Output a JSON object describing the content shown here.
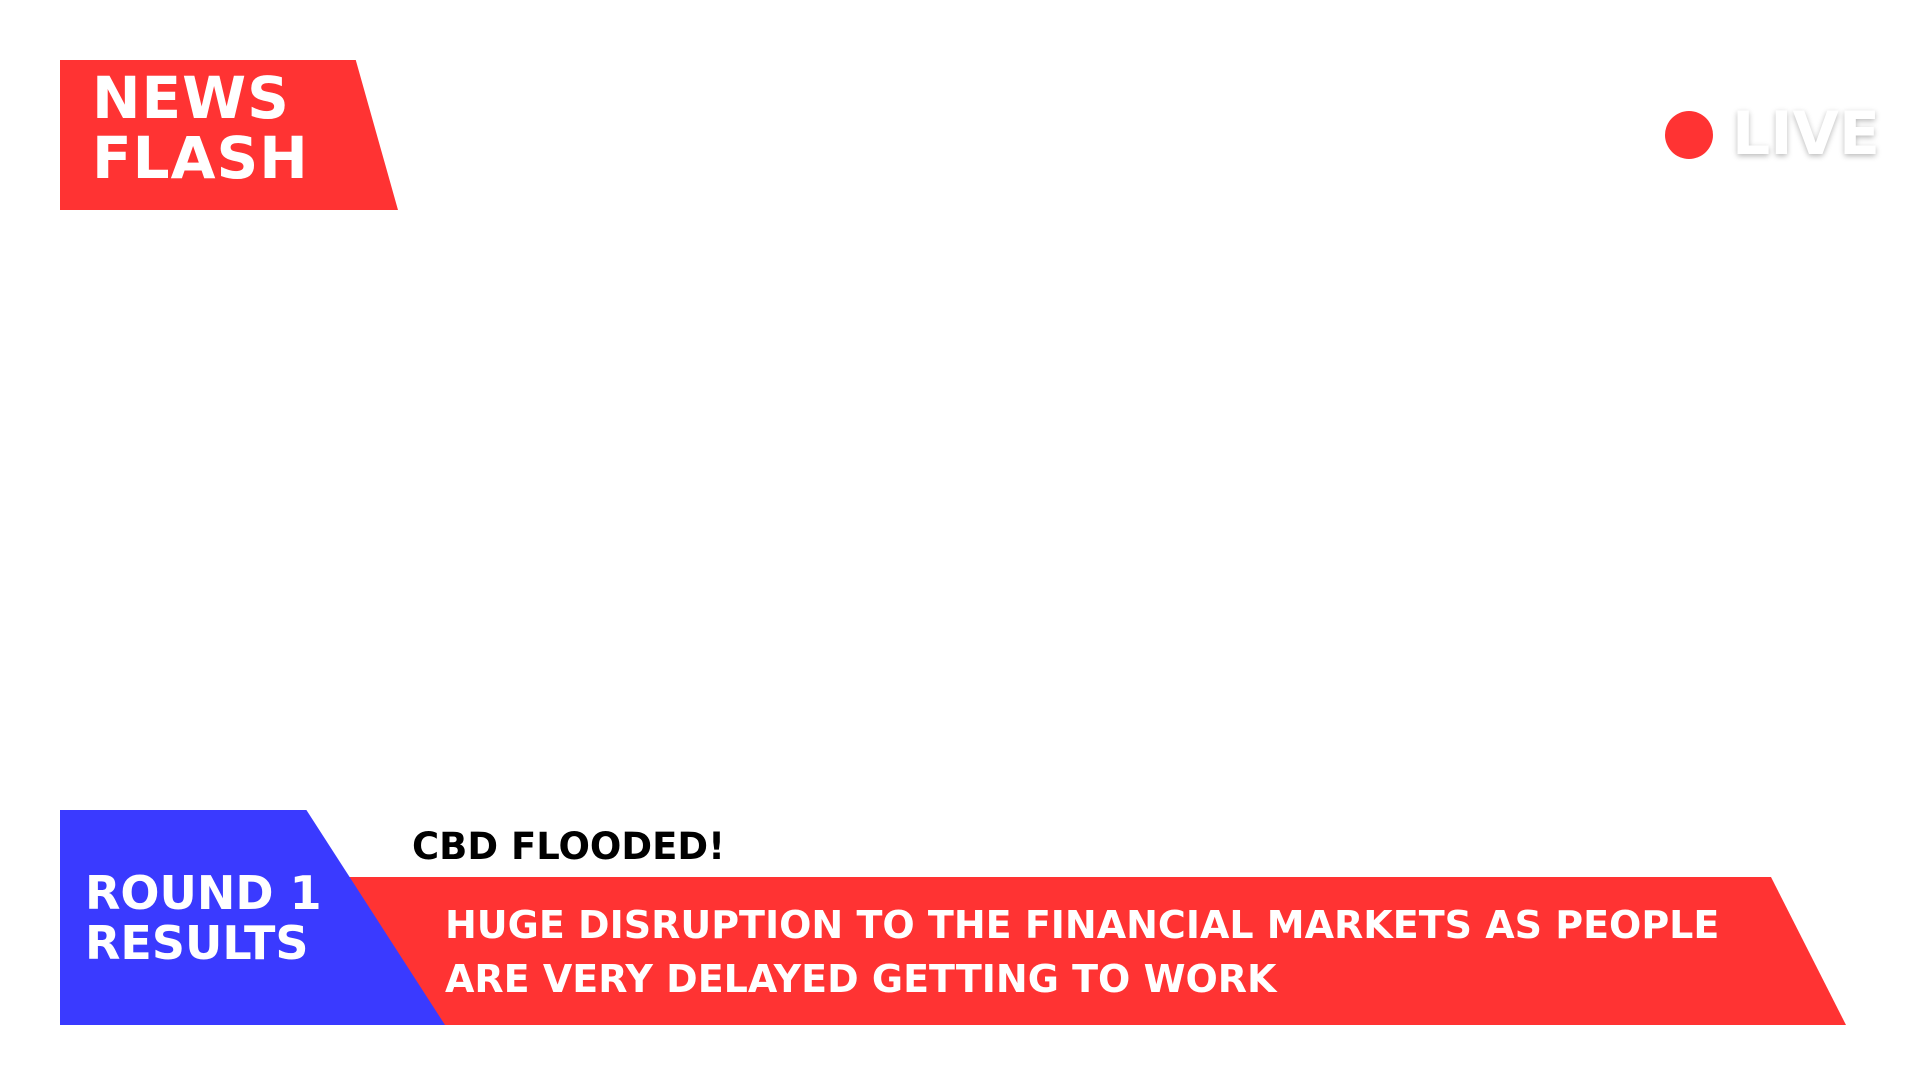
{
  "news_flash": {
    "line1": "NEWS",
    "line2": "FLASH"
  },
  "live": {
    "label": "LIVE"
  },
  "lower_third": {
    "tag_line1": "ROUND 1",
    "tag_line2": "RESULTS",
    "headline": "CBD FLOODED!",
    "body_line1": "HUGE DISRUPTION TO THE FINANCIAL MARKETS AS PEOPLE",
    "body_line2": "ARE VERY DELAYED GETTING TO WORK"
  },
  "colors": {
    "accent_red": "#FF3333",
    "accent_blue": "#3A3AFF",
    "background": "#FFFFFF"
  },
  "icons": {
    "live_indicator": "red-dot-icon"
  }
}
